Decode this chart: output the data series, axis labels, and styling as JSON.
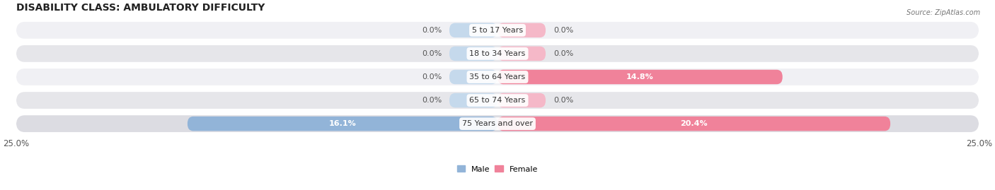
{
  "title": "DISABILITY CLASS: AMBULATORY DIFFICULTY",
  "source": "Source: ZipAtlas.com",
  "categories": [
    "5 to 17 Years",
    "18 to 34 Years",
    "35 to 64 Years",
    "65 to 74 Years",
    "75 Years and over"
  ],
  "male_values": [
    0.0,
    0.0,
    0.0,
    0.0,
    16.1
  ],
  "female_values": [
    0.0,
    0.0,
    14.8,
    0.0,
    20.4
  ],
  "x_max": 25.0,
  "male_color": "#92b4d8",
  "female_color": "#f0829a",
  "male_color_light": "#c5d9ec",
  "female_color_light": "#f5b8c8",
  "row_bg_colors": [
    "#f0f0f4",
    "#e6e6ea",
    "#f0f0f4",
    "#e6e6ea",
    "#dcdce2"
  ],
  "title_fontsize": 10,
  "label_fontsize": 8,
  "tick_fontsize": 8.5,
  "bar_height": 0.62,
  "min_bar_val": 2.5,
  "figsize": [
    14.06,
    2.69
  ],
  "dpi": 100
}
